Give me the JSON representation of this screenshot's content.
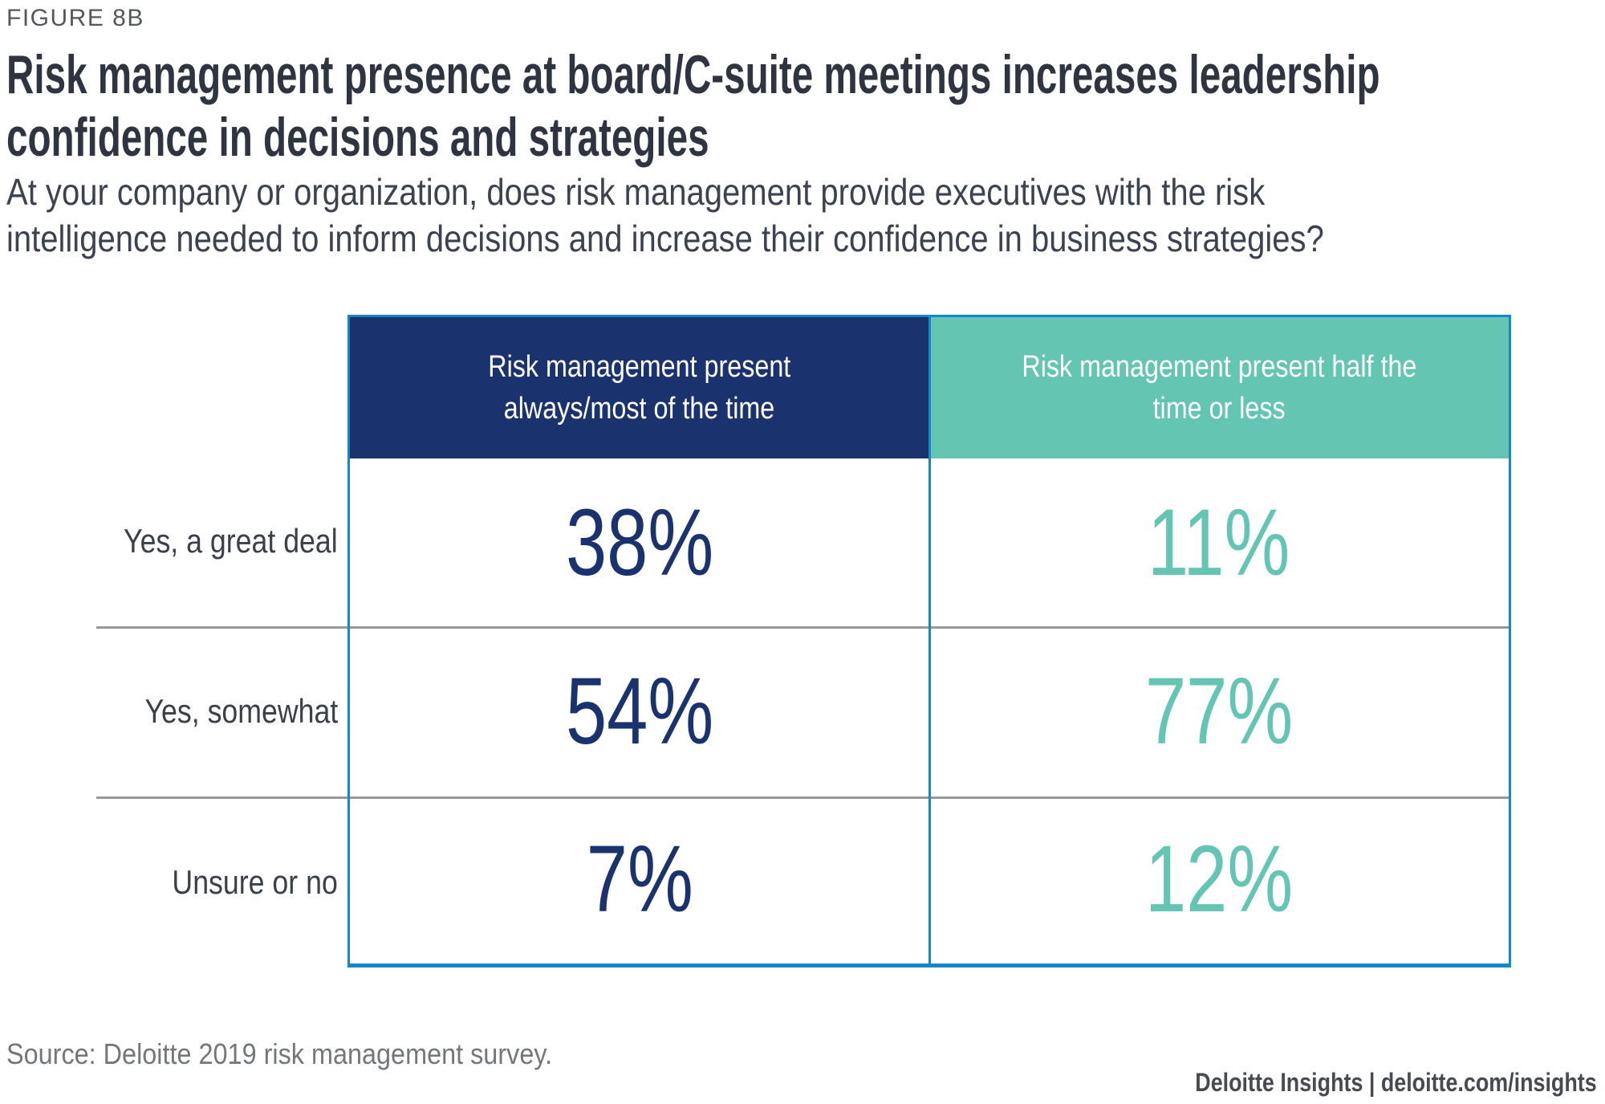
{
  "figure_label": "FIGURE 8B",
  "title": {
    "line1": "Risk management presence at board/C-suite meetings increases leadership",
    "line2": "confidence in decisions and strategies"
  },
  "subtitle": {
    "line1": "At your company or organization, does risk management provide executives with the risk",
    "line2": "intelligence needed to inform decisions and increase their confidence in business strategies?"
  },
  "table": {
    "columns": [
      {
        "line1": "Risk management present",
        "line2": "always/most of the time"
      },
      {
        "line1": "Risk management present half the",
        "line2": "time or less"
      }
    ],
    "rows": [
      {
        "label": "Yes, a great deal",
        "always": "38%",
        "half": "11%"
      },
      {
        "label": "Yes, somewhat",
        "always": "54%",
        "half": "77%"
      },
      {
        "label": "Unsure or no",
        "always": "7%",
        "half": "12%"
      }
    ]
  },
  "source": "Source: Deloitte 2019 risk management survey.",
  "footer": "Deloitte Insights | deloitte.com/insights",
  "colors": {
    "navy_header": "#1A336E",
    "teal_header": "#63C5B2",
    "table_border_blue": "#1586C8",
    "row_divider_gray": "#97999B",
    "title_text": "#2E3440",
    "subtitle_text": "#3B4250",
    "row_label_text": "#3A4049",
    "source_text": "#747779",
    "footer_text": "#474B50"
  },
  "chart_data": {
    "type": "table",
    "title": "Risk management presence at board/C-suite meetings increases leadership confidence in decisions and strategies",
    "subtitle": "At your company or organization, does risk management provide executives with the risk intelligence needed to inform decisions and increase their confidence in business strategies?",
    "categories": [
      "Yes, a great deal",
      "Yes, somewhat",
      "Unsure or no"
    ],
    "series": [
      {
        "name": "Risk management present always/most of the time",
        "values": [
          38,
          54,
          7
        ],
        "unit": "%",
        "color": "#1A336E"
      },
      {
        "name": "Risk management present half the time or less",
        "values": [
          11,
          77,
          12
        ],
        "unit": "%",
        "color": "#63C5B2"
      }
    ],
    "source": "Source: Deloitte 2019 risk management survey.",
    "legend_position": "column-headers",
    "grid": false
  }
}
